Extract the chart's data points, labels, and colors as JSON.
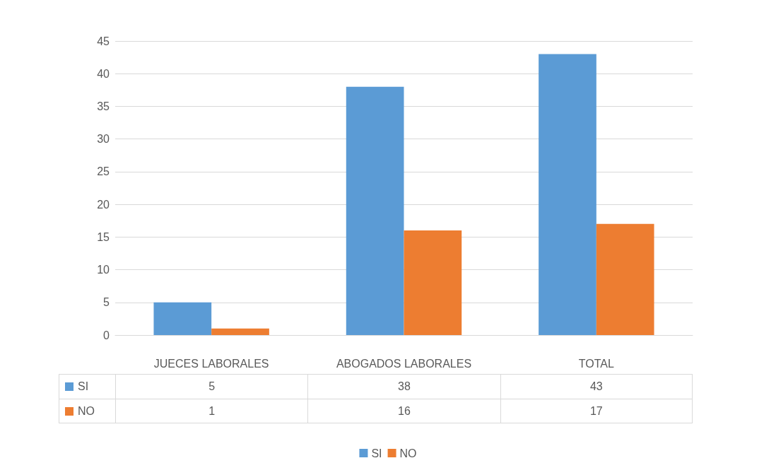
{
  "chart_data": {
    "type": "bar",
    "categories": [
      "JUECES LABORALES",
      "ABOGADOS LABORALES",
      "TOTAL"
    ],
    "series": [
      {
        "name": "SI",
        "color": "#5b9bd5",
        "values": [
          5,
          38,
          43
        ]
      },
      {
        "name": "NO",
        "color": "#ed7d31",
        "values": [
          1,
          16,
          17
        ]
      }
    ],
    "ylim": [
      0,
      45
    ],
    "yticks": [
      0,
      5,
      10,
      15,
      20,
      25,
      30,
      35,
      40,
      45
    ],
    "grid": "y",
    "legend": "bottom",
    "data_labels": true
  }
}
